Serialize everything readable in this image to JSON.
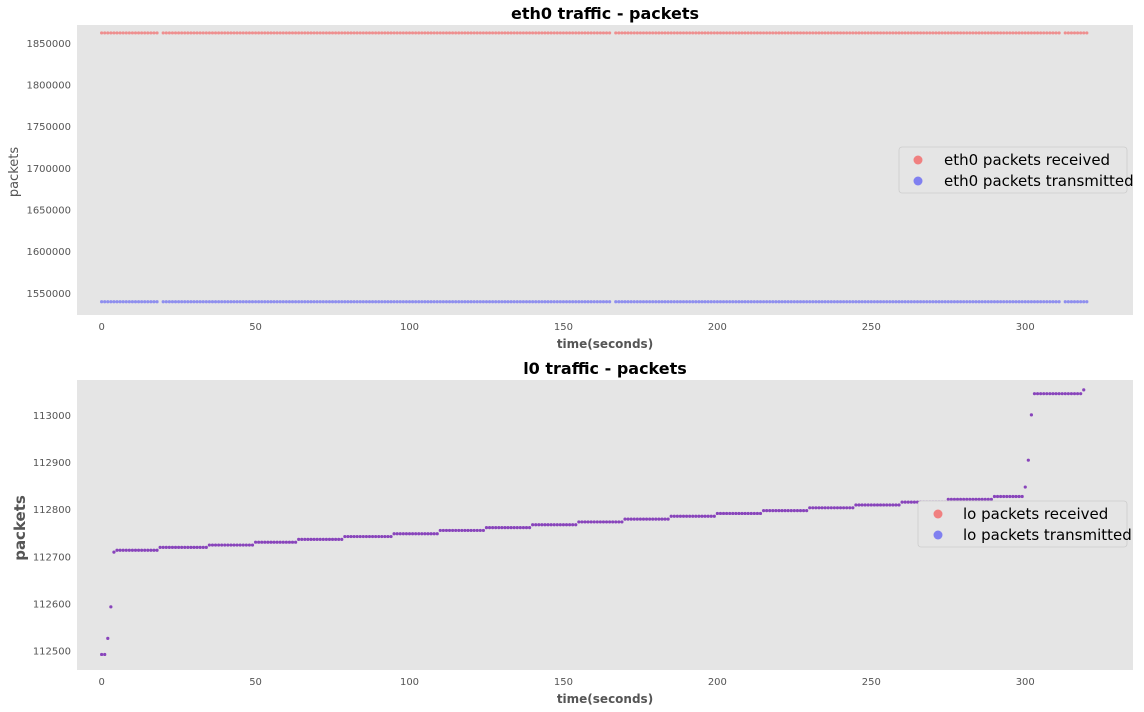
{
  "chart_data": [
    {
      "type": "scatter",
      "title": "eth0 traffic - packets",
      "xlabel": "time(seconds)",
      "ylabel": "packets",
      "xlim": [
        -8,
        335
      ],
      "ylim": [
        1524000,
        1872000
      ],
      "xticks": [
        0,
        50,
        100,
        150,
        200,
        250,
        300
      ],
      "xtick_labels": [
        "0",
        "50",
        "100",
        "150",
        "200",
        "250",
        "300"
      ],
      "yticks": [
        1550000,
        1600000,
        1650000,
        1700000,
        1750000,
        1800000,
        1850000
      ],
      "ytick_labels": [
        "1550000",
        "1600000",
        "1650000",
        "1700000",
        "1750000",
        "1800000",
        "1850000"
      ],
      "legend_position": "right",
      "grid": false,
      "series": [
        {
          "name": "eth0 packets received",
          "color": "#f08080",
          "x_range": [
            0,
            320
          ],
          "step": 1,
          "gaps": [
            19,
            166,
            312
          ],
          "y_constant": 1862500
        },
        {
          "name": "eth0 packets transmitted",
          "color": "#8080f0",
          "x_range": [
            0,
            320
          ],
          "step": 1,
          "gaps": [
            19,
            166,
            312
          ],
          "y_constant": 1539900
        }
      ]
    },
    {
      "type": "scatter",
      "title": "l0 traffic - packets",
      "xlabel": "time(seconds)",
      "ylabel": "packets",
      "xlim": [
        -8,
        335
      ],
      "ylim": [
        112460,
        113075
      ],
      "xticks": [
        0,
        50,
        100,
        150,
        200,
        250,
        300
      ],
      "xtick_labels": [
        "0",
        "50",
        "100",
        "150",
        "200",
        "250",
        "300"
      ],
      "yticks": [
        112500,
        112600,
        112700,
        112800,
        112900,
        113000
      ],
      "ytick_labels": [
        "112500",
        "112600",
        "112700",
        "112800",
        "112900",
        "113000"
      ],
      "legend_position": "right",
      "grid": false,
      "series": [
        {
          "name": "lo packets received",
          "color": "#f08080",
          "note_overlap": true
        },
        {
          "name": "lo packets transmitted",
          "color": "#8080f0"
        }
      ],
      "overlap_color": "#8844bb",
      "step_segments": [
        {
          "x": [
            0,
            1
          ],
          "y": 112493
        },
        {
          "x": [
            2,
            2
          ],
          "y": 112527
        },
        {
          "x": [
            3,
            3
          ],
          "y": 112594
        },
        {
          "x": [
            4,
            4
          ],
          "y": 112710
        },
        {
          "x": [
            5,
            18
          ],
          "y": 112714
        },
        {
          "x": [
            19,
            34
          ],
          "y": 112720
        },
        {
          "x": [
            35,
            49
          ],
          "y": 112725
        },
        {
          "x": [
            50,
            63
          ],
          "y": 112731
        },
        {
          "x": [
            64,
            78
          ],
          "y": 112737
        },
        {
          "x": [
            79,
            94
          ],
          "y": 112743
        },
        {
          "x": [
            95,
            109
          ],
          "y": 112749
        },
        {
          "x": [
            110,
            124
          ],
          "y": 112756
        },
        {
          "x": [
            125,
            139
          ],
          "y": 112762
        },
        {
          "x": [
            140,
            154
          ],
          "y": 112768
        },
        {
          "x": [
            155,
            169
          ],
          "y": 112774
        },
        {
          "x": [
            170,
            184
          ],
          "y": 112780
        },
        {
          "x": [
            185,
            199
          ],
          "y": 112786
        },
        {
          "x": [
            200,
            214
          ],
          "y": 112792
        },
        {
          "x": [
            215,
            229
          ],
          "y": 112798
        },
        {
          "x": [
            230,
            244
          ],
          "y": 112804
        },
        {
          "x": [
            245,
            259
          ],
          "y": 112810
        },
        {
          "x": [
            260,
            274
          ],
          "y": 112816
        },
        {
          "x": [
            275,
            289
          ],
          "y": 112822
        },
        {
          "x": [
            290,
            299
          ],
          "y": 112828
        },
        {
          "x": [
            300,
            300
          ],
          "y": 112848
        },
        {
          "x": [
            301,
            301
          ],
          "y": 112905
        },
        {
          "x": [
            302,
            302
          ],
          "y": 113001
        },
        {
          "x": [
            303,
            318
          ],
          "y": 113046
        },
        {
          "x": [
            319,
            319
          ],
          "y": 113054
        }
      ]
    }
  ]
}
